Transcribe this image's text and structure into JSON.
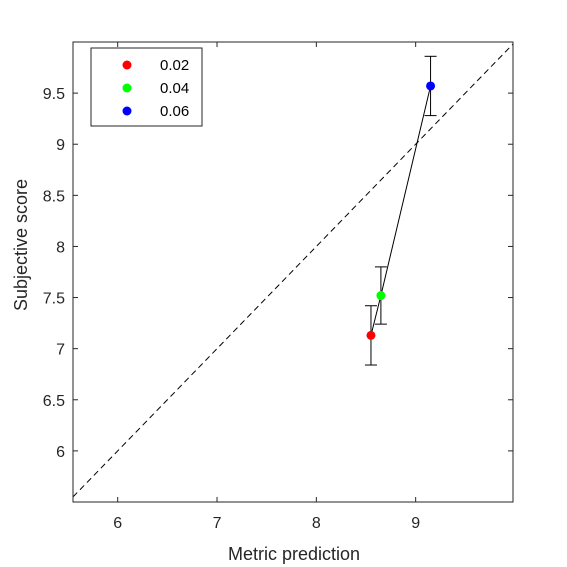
{
  "chart_data": {
    "type": "scatter",
    "xlabel": "Metric prediction",
    "ylabel": "Subjective score",
    "xlim": [
      5.55,
      9.98
    ],
    "ylim": [
      5.5,
      10.0
    ],
    "x_ticks": [
      6,
      7,
      8,
      9
    ],
    "y_ticks": [
      6,
      6.5,
      7,
      7.5,
      8,
      8.5,
      9,
      9.5
    ],
    "grid": false,
    "legend_position": "top-left",
    "reference_line": "y = x (dashed)",
    "fit_line": "solid, connecting points",
    "series": [
      {
        "name": "0.02",
        "color": "#ff0000",
        "x": 8.55,
        "y": 7.13,
        "err_low": 6.84,
        "err_high": 7.42
      },
      {
        "name": "0.04",
        "color": "#00ff00",
        "x": 8.65,
        "y": 7.52,
        "err_low": 7.24,
        "err_high": 7.8
      },
      {
        "name": "0.06",
        "color": "#0000ff",
        "x": 9.15,
        "y": 9.57,
        "err_low": 9.28,
        "err_high": 9.86
      }
    ]
  }
}
